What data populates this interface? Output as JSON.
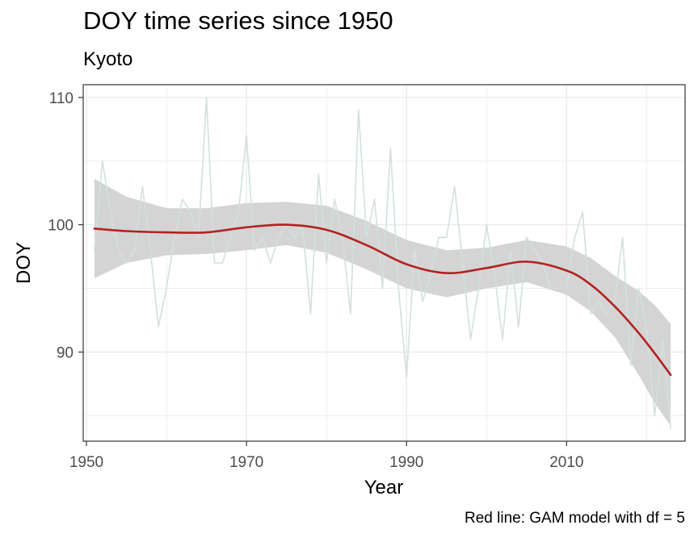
{
  "chart_data": {
    "type": "line",
    "title": "DOY time series since 1950",
    "subtitle": "Kyoto",
    "caption": "Red line: GAM model with df = 5",
    "xlabel": "Year",
    "ylabel": "DOY",
    "xlim": [
      1949.6,
      2024.8
    ],
    "ylim": [
      83,
      111
    ],
    "x_ticks": [
      1950,
      1970,
      1990,
      2010
    ],
    "x_minor_ticks": [
      1960,
      1980,
      2000,
      2020
    ],
    "y_ticks": [
      90,
      100,
      110
    ],
    "y_minor_ticks": [
      85,
      95,
      105
    ],
    "grid": true,
    "colors": {
      "observed": "#d3e0dd",
      "gam_fit": "#b22222",
      "confidence_band": "#d4d4d4",
      "grid": "#ebebeb",
      "panel_border": "#333333"
    },
    "series": [
      {
        "values": [
          [
            1951,
            98
          ],
          [
            1952,
            105
          ],
          [
            1953,
            101
          ],
          [
            1954,
            98
          ],
          [
            1955,
            97
          ],
          [
            1956,
            98
          ],
          [
            1957,
            103
          ],
          [
            1958,
            98
          ],
          [
            1959,
            92
          ],
          [
            1960,
            95
          ],
          [
            1961,
            99
          ],
          [
            1962,
            102
          ],
          [
            1963,
            101
          ],
          [
            1964,
            99
          ],
          [
            1965,
            110
          ],
          [
            1966,
            97
          ],
          [
            1967,
            97
          ],
          [
            1968,
            99
          ],
          [
            1969,
            101
          ],
          [
            1970,
            107
          ],
          [
            1971,
            98
          ],
          [
            1972,
            99
          ],
          [
            1973,
            97
          ],
          [
            1974,
            99
          ],
          [
            1975,
            100
          ],
          [
            1976,
            99
          ],
          [
            1977,
            100
          ],
          [
            1978,
            93
          ],
          [
            1979,
            104
          ],
          [
            1980,
            97
          ],
          [
            1981,
            102
          ],
          [
            1982,
            99
          ],
          [
            1983,
            93
          ],
          [
            1984,
            109
          ],
          [
            1985,
            99
          ],
          [
            1986,
            102
          ],
          [
            1987,
            95
          ],
          [
            1988,
            106
          ],
          [
            1989,
            95
          ],
          [
            1990,
            88
          ],
          [
            1991,
            98
          ],
          [
            1992,
            94
          ],
          [
            1993,
            96
          ],
          [
            1994,
            99
          ],
          [
            1995,
            99
          ],
          [
            1996,
            103
          ],
          [
            1997,
            97
          ],
          [
            1998,
            91
          ],
          [
            1999,
            95
          ],
          [
            2000,
            100
          ],
          [
            2001,
            96
          ],
          [
            2002,
            91
          ],
          [
            2003,
            98
          ],
          [
            2004,
            92
          ],
          [
            2005,
            99
          ],
          [
            2006,
            98
          ],
          [
            2007,
            97
          ],
          [
            2008,
            95
          ],
          [
            2009,
            95
          ],
          [
            2010,
            95
          ],
          [
            2011,
            99
          ],
          [
            2012,
            101
          ],
          [
            2013,
            93
          ],
          [
            2014,
            94
          ],
          [
            2015,
            93
          ],
          [
            2016,
            94
          ],
          [
            2017,
            99
          ],
          [
            2018,
            89
          ],
          [
            2019,
            95
          ],
          [
            2020,
            92
          ],
          [
            2021,
            85
          ],
          [
            2022,
            91
          ],
          [
            2023,
            84
          ]
        ]
      },
      {
        "values": [
          [
            1951,
            99.7
          ],
          [
            1955,
            99.5
          ],
          [
            1960,
            99.4
          ],
          [
            1965,
            99.4
          ],
          [
            1970,
            99.8
          ],
          [
            1975,
            100.0
          ],
          [
            1980,
            99.6
          ],
          [
            1985,
            98.4
          ],
          [
            1990,
            96.9
          ],
          [
            1995,
            96.2
          ],
          [
            2000,
            96.6
          ],
          [
            2005,
            97.1
          ],
          [
            2010,
            96.4
          ],
          [
            2013,
            95.3
          ],
          [
            2016,
            93.6
          ],
          [
            2019,
            91.5
          ],
          [
            2021,
            89.9
          ],
          [
            2023,
            88.2
          ]
        ],
        "ci_lower": [
          [
            1951,
            95.8
          ],
          [
            1955,
            97.0
          ],
          [
            1960,
            97.6
          ],
          [
            1965,
            97.7
          ],
          [
            1970,
            98.0
          ],
          [
            1975,
            98.4
          ],
          [
            1980,
            97.8
          ],
          [
            1985,
            96.5
          ],
          [
            1990,
            95.0
          ],
          [
            1995,
            94.3
          ],
          [
            2000,
            95.0
          ],
          [
            2005,
            95.5
          ],
          [
            2010,
            94.5
          ],
          [
            2013,
            93.2
          ],
          [
            2016,
            91.2
          ],
          [
            2019,
            88.2
          ],
          [
            2021,
            86.0
          ],
          [
            2023,
            84.2
          ]
        ],
        "ci_upper": [
          [
            1951,
            103.6
          ],
          [
            1955,
            102.2
          ],
          [
            1960,
            101.3
          ],
          [
            1965,
            101.3
          ],
          [
            1970,
            101.7
          ],
          [
            1975,
            101.8
          ],
          [
            1980,
            101.5
          ],
          [
            1985,
            100.3
          ],
          [
            1990,
            98.8
          ],
          [
            1995,
            98.0
          ],
          [
            2000,
            98.2
          ],
          [
            2005,
            98.8
          ],
          [
            2010,
            98.3
          ],
          [
            2013,
            97.4
          ],
          [
            2016,
            96.0
          ],
          [
            2019,
            94.8
          ],
          [
            2021,
            93.7
          ],
          [
            2023,
            92.2
          ]
        ]
      }
    ]
  }
}
